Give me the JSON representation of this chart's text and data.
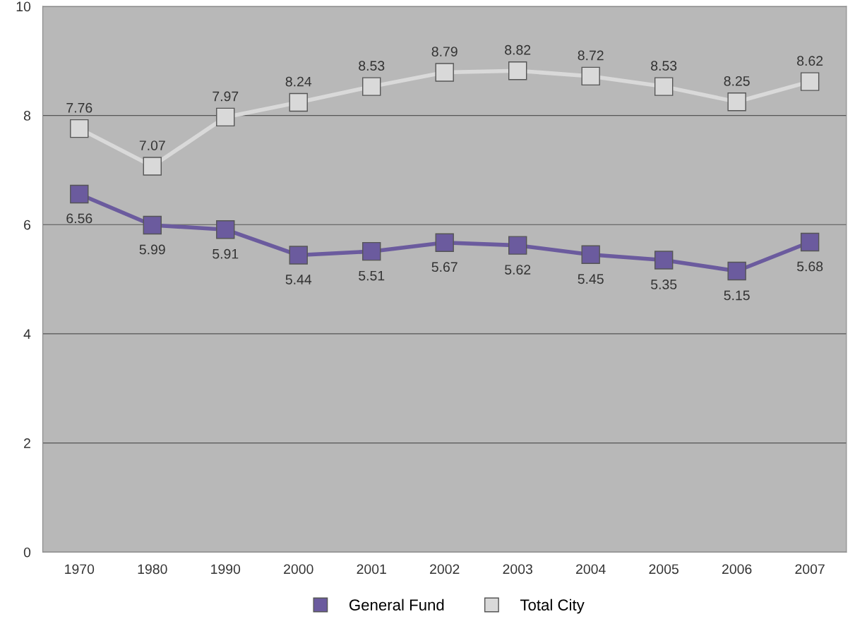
{
  "chart_data": {
    "type": "line",
    "categories": [
      "1970",
      "1980",
      "1990",
      "2000",
      "2001",
      "2002",
      "2003",
      "2004",
      "2005",
      "2006",
      "2007"
    ],
    "series": [
      {
        "name": "General Fund",
        "color": "#6b5b9e",
        "values": [
          6.56,
          5.99,
          5.91,
          5.44,
          5.51,
          5.67,
          5.62,
          5.45,
          5.35,
          5.15,
          5.68
        ]
      },
      {
        "name": "Total City",
        "color": "#d9d9d9",
        "values": [
          7.76,
          7.07,
          7.97,
          8.24,
          8.53,
          8.79,
          8.82,
          8.72,
          8.53,
          8.25,
          8.62
        ]
      }
    ],
    "ylim": [
      0,
      10
    ],
    "yticks": [
      0,
      2,
      4,
      6,
      8,
      10
    ],
    "grid": "y",
    "legend": "bottom",
    "marker": "square",
    "line_style": "solid",
    "data_labels": true
  }
}
